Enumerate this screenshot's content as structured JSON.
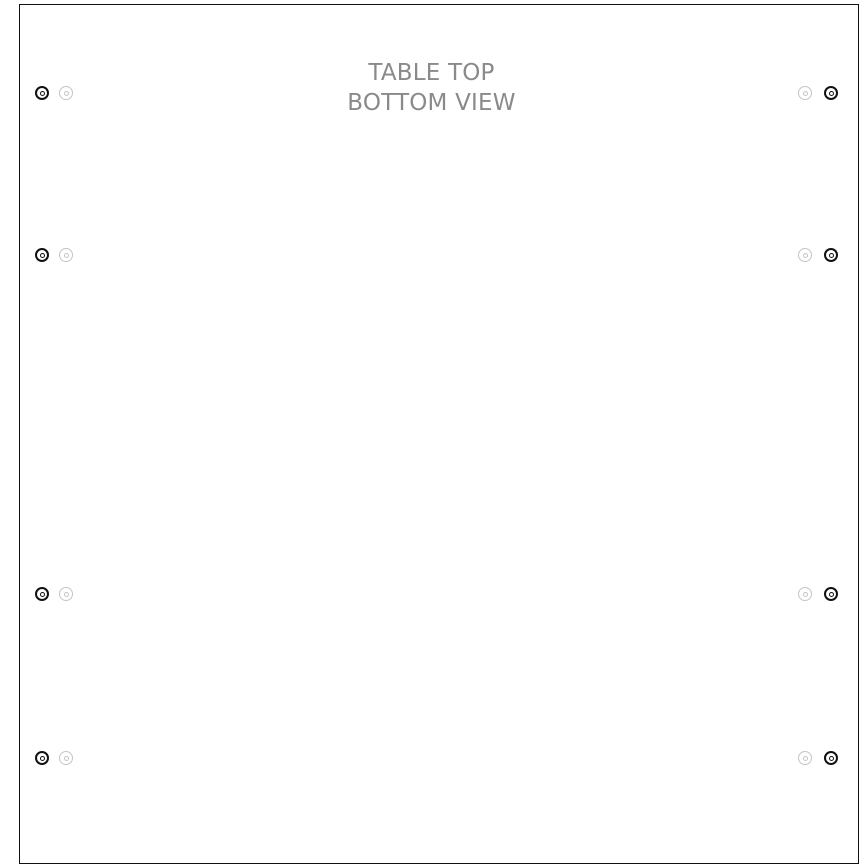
{
  "title": {
    "line1": "TABLE TOP",
    "line2": "BOTTOM VIEW"
  },
  "colors": {
    "border": "#111111",
    "title_text": "#8a8a8a",
    "hole_dark": "#111111",
    "hole_light": "#c4c4c4"
  },
  "holes": {
    "left_column": [
      "hole-pair",
      "hole-pair",
      "hole-pair",
      "hole-pair"
    ],
    "right_column": [
      "hole-pair",
      "hole-pair",
      "hole-pair",
      "hole-pair"
    ]
  }
}
